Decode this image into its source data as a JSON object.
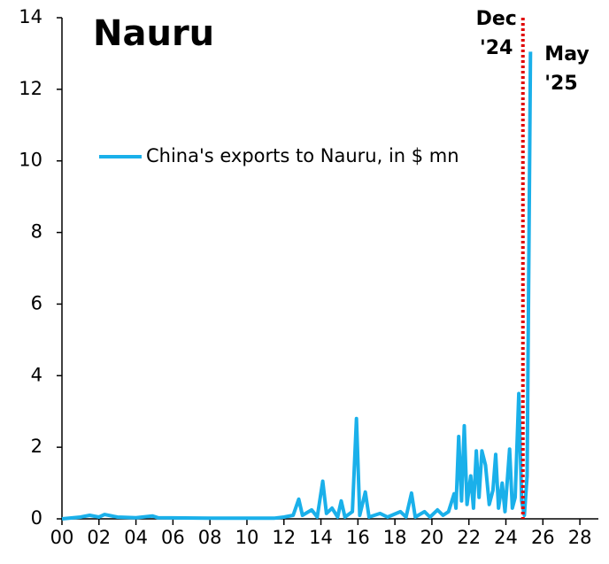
{
  "chart_data": {
    "type": "line",
    "title": "Nauru",
    "series": [
      {
        "name": "China's exports to Nauru, in $ mn",
        "color": "#1ab0ea",
        "x": [
          2000,
          2001,
          2001.5,
          2002,
          2002.3,
          2003,
          2004,
          2004.9,
          2005.2,
          2008,
          2011.5,
          2012,
          2012.5,
          2012.8,
          2013,
          2013.5,
          2013.8,
          2014.1,
          2014.3,
          2014.6,
          2014.9,
          2015.1,
          2015.3,
          2015.7,
          2015.92,
          2016.1,
          2016.4,
          2016.6,
          2017.2,
          2017.6,
          2018.3,
          2018.6,
          2018.9,
          2019.1,
          2019.6,
          2019.9,
          2020.3,
          2020.6,
          2020.9,
          2021.2,
          2021.3,
          2021.45,
          2021.6,
          2021.75,
          2021.9,
          2022.1,
          2022.25,
          2022.4,
          2022.55,
          2022.7,
          2022.9,
          2023.1,
          2023.3,
          2023.45,
          2023.6,
          2023.8,
          2023.95,
          2024.2,
          2024.35,
          2024.5,
          2024.7,
          2024.85,
          2025.0,
          2025.15,
          2025.33
        ],
        "values": [
          0,
          0.05,
          0.1,
          0.05,
          0.12,
          0.05,
          0.03,
          0.08,
          0.03,
          0.02,
          0.02,
          0.05,
          0.1,
          0.55,
          0.1,
          0.25,
          0.05,
          1.05,
          0.15,
          0.3,
          0.05,
          0.5,
          0.05,
          0.2,
          2.8,
          0.1,
          0.75,
          0.05,
          0.15,
          0.05,
          0.2,
          0.05,
          0.72,
          0.05,
          0.2,
          0.05,
          0.25,
          0.1,
          0.2,
          0.7,
          0.3,
          2.3,
          0.5,
          2.6,
          0.4,
          1.2,
          0.3,
          1.9,
          0.6,
          1.9,
          1.5,
          0.4,
          0.8,
          1.8,
          0.3,
          1.0,
          0.2,
          1.95,
          0.3,
          0.6,
          3.5,
          0.5,
          0.1,
          1.2,
          13.05
        ]
      }
    ],
    "xlim": [
      2000,
      2029
    ],
    "xticks": [
      {
        "value": 2000,
        "label": "00"
      },
      {
        "value": 2002,
        "label": "02"
      },
      {
        "value": 2004,
        "label": "04"
      },
      {
        "value": 2006,
        "label": "06"
      },
      {
        "value": 2008,
        "label": "08"
      },
      {
        "value": 2010,
        "label": "10"
      },
      {
        "value": 2012,
        "label": "12"
      },
      {
        "value": 2014,
        "label": "14"
      },
      {
        "value": 2016,
        "label": "16"
      },
      {
        "value": 2018,
        "label": "18"
      },
      {
        "value": 2020,
        "label": "20"
      },
      {
        "value": 2022,
        "label": "22"
      },
      {
        "value": 2024,
        "label": "24"
      },
      {
        "value": 2026,
        "label": "26"
      },
      {
        "value": 2028,
        "label": "28"
      }
    ],
    "ylim": [
      0,
      14
    ],
    "yticks": [
      0,
      2,
      4,
      6,
      8,
      10,
      12,
      14
    ],
    "annotations": [
      {
        "lines": [
          "Dec",
          "'24"
        ],
        "x": 2024.92,
        "color": "#e00000",
        "vline": true
      },
      {
        "lines": [
          "May",
          "'25"
        ],
        "x": 2025.33,
        "color": "#1ab0ea"
      }
    ]
  }
}
